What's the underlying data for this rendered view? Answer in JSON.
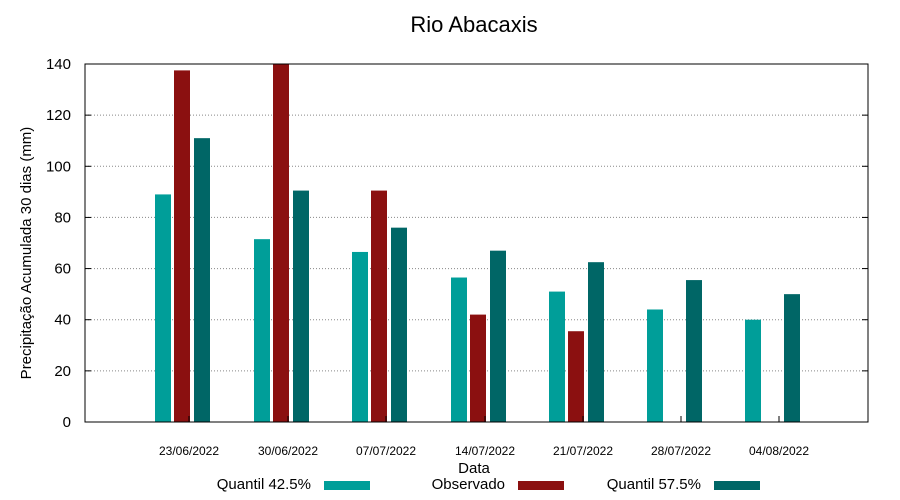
{
  "chart_data": {
    "type": "bar",
    "title": "Rio Abacaxis",
    "xlabel": "Data",
    "ylabel": "Precipitação Acumulada 30 dias (mm)",
    "ylim": [
      0,
      140
    ],
    "yticks": [
      0,
      20,
      40,
      60,
      80,
      100,
      120,
      140
    ],
    "grid": true,
    "legend_position": "bottom",
    "categories": [
      "23/06/2022",
      "30/06/2022",
      "07/07/2022",
      "14/07/2022",
      "21/07/2022",
      "28/07/2022",
      "04/08/2022"
    ],
    "series": [
      {
        "name": "Quantil 42.5%",
        "color": "#009e99",
        "values": [
          89,
          71.5,
          66.5,
          56.5,
          51,
          44,
          40
        ]
      },
      {
        "name": "Observado",
        "color": "#8b1010",
        "values": [
          137.5,
          140,
          90.5,
          42,
          35.5,
          null,
          null
        ]
      },
      {
        "name": "Quantil 57.5%",
        "color": "#006666",
        "values": [
          111,
          90.5,
          76,
          67,
          62.5,
          55.5,
          50
        ]
      }
    ]
  }
}
